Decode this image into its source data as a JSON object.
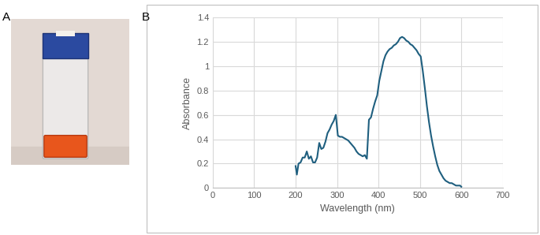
{
  "chart_data": {
    "type": "line",
    "xlabel": "Wavelength (nm)",
    "ylabel": "Absorbance",
    "x": [
      200,
      203,
      207,
      212,
      217,
      222,
      227,
      232,
      237,
      242,
      247,
      252,
      257,
      262,
      267,
      272,
      277,
      282,
      287,
      292,
      297,
      302,
      307,
      312,
      317,
      322,
      327,
      332,
      337,
      342,
      347,
      352,
      357,
      362,
      367,
      372,
      377,
      382,
      387,
      392,
      397,
      402,
      407,
      412,
      417,
      422,
      427,
      432,
      437,
      442,
      447,
      452,
      457,
      462,
      467,
      472,
      477,
      482,
      487,
      492,
      497,
      502,
      507,
      512,
      517,
      522,
      527,
      532,
      537,
      542,
      547,
      552,
      557,
      562,
      567,
      572,
      577,
      582,
      587,
      592,
      597,
      600
    ],
    "values": [
      0.18,
      0.11,
      0.2,
      0.21,
      0.25,
      0.25,
      0.3,
      0.24,
      0.26,
      0.21,
      0.21,
      0.25,
      0.37,
      0.32,
      0.33,
      0.38,
      0.45,
      0.48,
      0.52,
      0.55,
      0.6,
      0.43,
      0.42,
      0.42,
      0.41,
      0.4,
      0.39,
      0.37,
      0.35,
      0.33,
      0.3,
      0.28,
      0.27,
      0.26,
      0.27,
      0.24,
      0.56,
      0.58,
      0.65,
      0.71,
      0.76,
      0.88,
      0.96,
      1.04,
      1.09,
      1.12,
      1.14,
      1.15,
      1.17,
      1.18,
      1.2,
      1.23,
      1.24,
      1.23,
      1.21,
      1.2,
      1.18,
      1.17,
      1.15,
      1.13,
      1.1,
      1.08,
      0.96,
      0.82,
      0.67,
      0.54,
      0.43,
      0.34,
      0.26,
      0.19,
      0.14,
      0.11,
      0.08,
      0.06,
      0.05,
      0.04,
      0.04,
      0.03,
      0.02,
      0.02,
      0.02,
      0.01
    ],
    "color": "#1f5f7f",
    "xlim": [
      0,
      700
    ],
    "xticks": [
      0,
      100,
      200,
      300,
      400,
      500,
      600,
      700
    ],
    "ylim": [
      0,
      1.4
    ],
    "yticks": [
      0,
      0.2,
      0.4,
      0.6,
      0.8,
      1,
      1.2,
      1.4
    ],
    "grid": true
  },
  "panel_labels": [
    "A",
    "B"
  ]
}
